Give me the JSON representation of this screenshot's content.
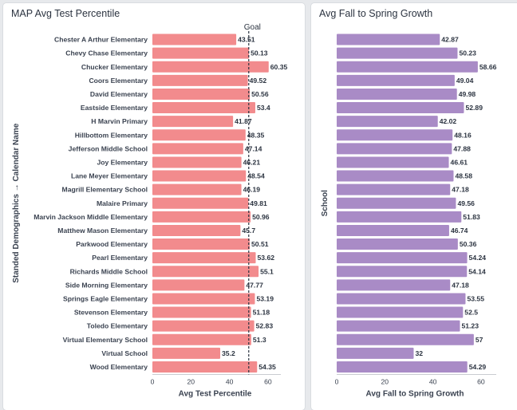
{
  "chart_data": [
    {
      "type": "bar",
      "orientation": "horizontal",
      "title": "MAP Avg Test Percentile",
      "ylabel": "Standed Demographics → Calendar Name",
      "xlabel": "Avg Test Percentile",
      "xlim": [
        0,
        65
      ],
      "xticks": [
        0,
        20,
        40,
        60
      ],
      "grid": false,
      "color": "#f28b8d",
      "goal_label": "Goal",
      "goal_value": 50,
      "categories": [
        "Chester A Arthur Elementary",
        "Chevy Chase Elementary",
        "Chucker Elementary",
        "Coors Elementary",
        "David Elementary",
        "Eastside Elementary",
        "H Marvin Primary",
        "Hillbottom Elementary",
        "Jefferson Middle School",
        "Joy Elementary",
        "Lane Meyer Elementary",
        "Magrill Elementary School",
        "Malaire Primary",
        "Marvin Jackson Middle Elementary",
        "Matthew Mason Elementary",
        "Parkwood Elementary",
        "Pearl Elementary",
        "Richards Middle School",
        "Side Morning Elementary",
        "Springs Eagle Elementary",
        "Stevenson Elementary",
        "Toledo Elementary",
        "Virtual Elementary School",
        "Virtual School",
        "Wood Elementary"
      ],
      "values": [
        43.51,
        50.13,
        60.35,
        49.52,
        50.56,
        53.4,
        41.87,
        48.35,
        47.14,
        46.21,
        48.54,
        46.19,
        49.81,
        50.96,
        45.7,
        50.51,
        53.62,
        55.1,
        47.77,
        53.19,
        51.18,
        52.83,
        51.3,
        35.2,
        54.35
      ],
      "value_labels": [
        "43.51",
        "50.13",
        "60.35",
        "49.52",
        "50.56",
        "53.4",
        "41.87",
        "48.35",
        "47.14",
        "46.21",
        "48.54",
        "46.19",
        "49.81",
        "50.96",
        "45.7",
        "50.51",
        "53.62",
        "55.1",
        "47.77",
        "53.19",
        "51.18",
        "52.83",
        "51.3",
        "35.2",
        "54.35"
      ]
    },
    {
      "type": "bar",
      "orientation": "horizontal",
      "title": "Avg Fall to Spring Growth",
      "ylabel": "School",
      "xlabel": "Avg Fall to Spring Growth",
      "xlim": [
        0,
        65
      ],
      "xticks": [
        0,
        20,
        40,
        60
      ],
      "grid": false,
      "color": "#a98bc6",
      "values": [
        42.87,
        50.23,
        58.66,
        49.04,
        49.98,
        52.89,
        42.02,
        48.16,
        47.88,
        46.61,
        48.58,
        47.18,
        49.56,
        51.83,
        46.74,
        50.36,
        54.24,
        54.14,
        47.18,
        53.55,
        52.5,
        51.23,
        57,
        32,
        54.29
      ],
      "value_labels": [
        "42.87",
        "50.23",
        "58.66",
        "49.04",
        "49.98",
        "52.89",
        "42.02",
        "48.16",
        "47.88",
        "46.61",
        "48.58",
        "47.18",
        "49.56",
        "51.83",
        "46.74",
        "50.36",
        "54.24",
        "54.14",
        "47.18",
        "53.55",
        "52.5",
        "51.23",
        "57",
        "32",
        "54.29"
      ]
    }
  ]
}
